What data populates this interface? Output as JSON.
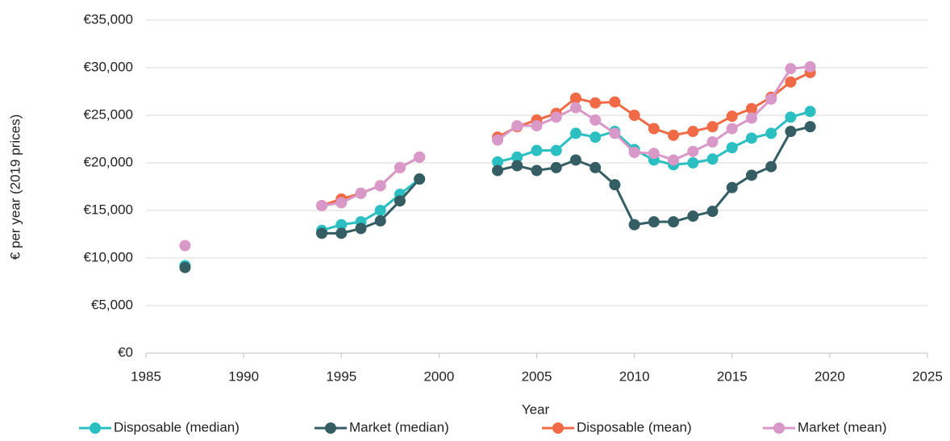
{
  "chart_data": {
    "type": "line",
    "x_label": "Year",
    "y_label": "€ per year (2019 prices)",
    "x": [
      1987,
      1988,
      1989,
      1990,
      1991,
      1992,
      1993,
      1994,
      1995,
      1996,
      1997,
      1998,
      1999,
      2000,
      2001,
      2002,
      2003,
      2004,
      2005,
      2006,
      2007,
      2008,
      2009,
      2010,
      2011,
      2012,
      2013,
      2014,
      2015,
      2016,
      2017,
      2018,
      2019
    ],
    "xlim": [
      1985,
      2025
    ],
    "xticks": [
      1985,
      1990,
      1995,
      2000,
      2005,
      2010,
      2015,
      2020,
      2025
    ],
    "ylim": [
      0,
      35000
    ],
    "yticks": [
      {
        "value": 0,
        "label": "€0"
      },
      {
        "value": 5000,
        "label": "€5,000"
      },
      {
        "value": 10000,
        "label": "€10,000"
      },
      {
        "value": 15000,
        "label": "€15,000"
      },
      {
        "value": 20000,
        "label": "€20,000"
      },
      {
        "value": 25000,
        "label": "€25,000"
      },
      {
        "value": 30000,
        "label": "€30,000"
      },
      {
        "value": 35000,
        "label": "€35,000"
      }
    ],
    "grid": true,
    "legend": "bottom",
    "series": [
      {
        "name": "Disposable (median)",
        "color": "#2bbfc2",
        "values": [
          9200,
          null,
          null,
          null,
          null,
          null,
          null,
          12900,
          13500,
          13800,
          15000,
          16700,
          18300,
          null,
          null,
          null,
          20100,
          20600,
          21300,
          21300,
          23100,
          22700,
          23300,
          21400,
          20300,
          19800,
          20000,
          20400,
          21600,
          22600,
          23100,
          24800,
          25400
        ]
      },
      {
        "name": "Market (median)",
        "color": "#345e63",
        "values": [
          9000,
          null,
          null,
          null,
          null,
          null,
          null,
          12600,
          12600,
          13100,
          13900,
          16000,
          18300,
          null,
          null,
          null,
          19200,
          19700,
          19200,
          19500,
          20300,
          19500,
          17700,
          13500,
          13800,
          13800,
          14400,
          14900,
          17400,
          18700,
          19600,
          23300,
          23800
        ]
      },
      {
        "name": "Disposable (mean)",
        "color": "#ef6a45",
        "values": [
          null,
          null,
          null,
          null,
          null,
          null,
          null,
          15500,
          16200,
          16800,
          17600,
          19500,
          20600,
          null,
          null,
          null,
          22700,
          23800,
          24500,
          25200,
          26800,
          26300,
          26400,
          25000,
          23600,
          22900,
          23300,
          23800,
          24900,
          25700,
          26900,
          28500,
          29500
        ]
      },
      {
        "name": "Market (mean)",
        "color": "#d898c8",
        "values": [
          11300,
          null,
          null,
          null,
          null,
          null,
          null,
          15500,
          15800,
          16800,
          17600,
          19500,
          20600,
          null,
          null,
          null,
          22400,
          23900,
          23900,
          24800,
          25800,
          24500,
          23100,
          21100,
          21000,
          20300,
          21200,
          22200,
          23600,
          24700,
          26700,
          29900,
          30100
        ]
      }
    ]
  }
}
